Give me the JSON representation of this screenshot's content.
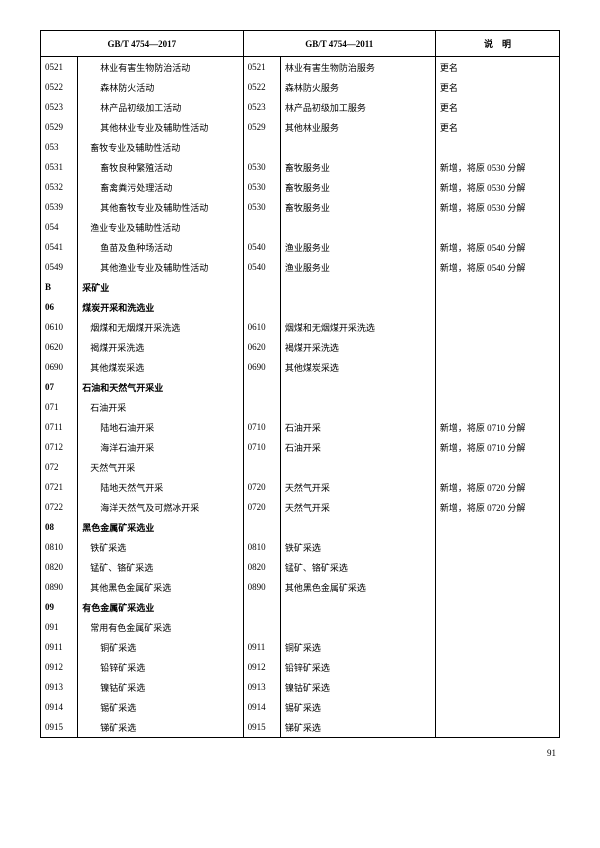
{
  "header": {
    "col1": "GB/T 4754—2017",
    "col2": "GB/T 4754—2011",
    "col3": "说　明"
  },
  "rows": [
    {
      "c1": "0521",
      "n1": "林业有害生物防治活动",
      "i1": 2,
      "c2": "0521",
      "n2": "林业有害生物防治服务",
      "d": "更名"
    },
    {
      "c1": "0522",
      "n1": "森林防火活动",
      "i1": 2,
      "c2": "0522",
      "n2": "森林防火服务",
      "d": "更名"
    },
    {
      "c1": "0523",
      "n1": "林产品初级加工活动",
      "i1": 2,
      "c2": "0523",
      "n2": "林产品初级加工服务",
      "d": "更名"
    },
    {
      "c1": "0529",
      "n1": "其他林业专业及辅助性活动",
      "i1": 2,
      "c2": "0529",
      "n2": "其他林业服务",
      "d": "更名"
    },
    {
      "c1": "053",
      "n1": "畜牧专业及辅助性活动",
      "i1": 1,
      "c2": "",
      "n2": "",
      "d": ""
    },
    {
      "c1": "0531",
      "n1": "畜牧良种繁殖活动",
      "i1": 2,
      "c2": "0530",
      "n2": "畜牧服务业",
      "d": "新增，将原 0530 分解"
    },
    {
      "c1": "0532",
      "n1": "畜禽粪污处理活动",
      "i1": 2,
      "c2": "0530",
      "n2": "畜牧服务业",
      "d": "新增，将原 0530 分解"
    },
    {
      "c1": "0539",
      "n1": "其他畜牧专业及辅助性活动",
      "i1": 2,
      "c2": "0530",
      "n2": "畜牧服务业",
      "d": "新增，将原 0530 分解"
    },
    {
      "c1": "054",
      "n1": "渔业专业及辅助性活动",
      "i1": 1,
      "c2": "",
      "n2": "",
      "d": ""
    },
    {
      "c1": "0541",
      "n1": "鱼苗及鱼种场活动",
      "i1": 2,
      "c2": "0540",
      "n2": "渔业服务业",
      "d": "新增，将原 0540 分解"
    },
    {
      "c1": "0549",
      "n1": "其他渔业专业及辅助性活动",
      "i1": 2,
      "c2": "0540",
      "n2": "渔业服务业",
      "d": "新增，将原 0540 分解"
    },
    {
      "c1": "B",
      "n1": "采矿业",
      "i1": 0,
      "bold": true,
      "c2": "",
      "n2": "",
      "d": ""
    },
    {
      "c1": "06",
      "n1": "煤炭开采和洗选业",
      "i1": 0,
      "bold": true,
      "c2": "",
      "n2": "",
      "d": ""
    },
    {
      "c1": "0610",
      "n1": "烟煤和无烟煤开采洗选",
      "i1": 1,
      "c2": "0610",
      "n2": "烟煤和无烟煤开采洗选",
      "d": ""
    },
    {
      "c1": "0620",
      "n1": "褐煤开采洗选",
      "i1": 1,
      "c2": "0620",
      "n2": "褐煤开采洗选",
      "d": ""
    },
    {
      "c1": "0690",
      "n1": "其他煤炭采选",
      "i1": 1,
      "c2": "0690",
      "n2": "其他煤炭采选",
      "d": ""
    },
    {
      "c1": "07",
      "n1": "石油和天然气开采业",
      "i1": 0,
      "bold": true,
      "c2": "",
      "n2": "",
      "d": ""
    },
    {
      "c1": "071",
      "n1": "石油开采",
      "i1": 1,
      "c2": "",
      "n2": "",
      "d": ""
    },
    {
      "c1": "0711",
      "n1": "陆地石油开采",
      "i1": 2,
      "c2": "0710",
      "n2": "石油开采",
      "d": "新增，将原 0710 分解"
    },
    {
      "c1": "0712",
      "n1": "海洋石油开采",
      "i1": 2,
      "c2": "0710",
      "n2": "石油开采",
      "d": "新增，将原 0710 分解"
    },
    {
      "c1": "072",
      "n1": "天然气开采",
      "i1": 1,
      "c2": "",
      "n2": "",
      "d": ""
    },
    {
      "c1": "0721",
      "n1": "陆地天然气开采",
      "i1": 2,
      "c2": "0720",
      "n2": "天然气开采",
      "d": "新增，将原 0720 分解"
    },
    {
      "c1": "0722",
      "n1": "海洋天然气及可燃冰开采",
      "i1": 2,
      "c2": "0720",
      "n2": "天然气开采",
      "d": "新增，将原 0720 分解"
    },
    {
      "c1": "08",
      "n1": "黑色金属矿采选业",
      "i1": 0,
      "bold": true,
      "c2": "",
      "n2": "",
      "d": ""
    },
    {
      "c1": "0810",
      "n1": "铁矿采选",
      "i1": 1,
      "c2": "0810",
      "n2": "铁矿采选",
      "d": ""
    },
    {
      "c1": "0820",
      "n1": "锰矿、铬矿采选",
      "i1": 1,
      "c2": "0820",
      "n2": "锰矿、铬矿采选",
      "d": ""
    },
    {
      "c1": "0890",
      "n1": "其他黑色金属矿采选",
      "i1": 1,
      "c2": "0890",
      "n2": "其他黑色金属矿采选",
      "d": ""
    },
    {
      "c1": "09",
      "n1": "有色金属矿采选业",
      "i1": 0,
      "bold": true,
      "c2": "",
      "n2": "",
      "d": ""
    },
    {
      "c1": "091",
      "n1": "常用有色金属矿采选",
      "i1": 1,
      "c2": "",
      "n2": "",
      "d": ""
    },
    {
      "c1": "0911",
      "n1": "铜矿采选",
      "i1": 2,
      "c2": "0911",
      "n2": "铜矿采选",
      "d": ""
    },
    {
      "c1": "0912",
      "n1": "铅锌矿采选",
      "i1": 2,
      "c2": "0912",
      "n2": "铅锌矿采选",
      "d": ""
    },
    {
      "c1": "0913",
      "n1": "镍钴矿采选",
      "i1": 2,
      "c2": "0913",
      "n2": "镍钴矿采选",
      "d": ""
    },
    {
      "c1": "0914",
      "n1": "锡矿采选",
      "i1": 2,
      "c2": "0914",
      "n2": "锡矿采选",
      "d": ""
    },
    {
      "c1": "0915",
      "n1": "锑矿采选",
      "i1": 2,
      "c2": "0915",
      "n2": "锑矿采选",
      "d": ""
    }
  ],
  "page_number": "91"
}
